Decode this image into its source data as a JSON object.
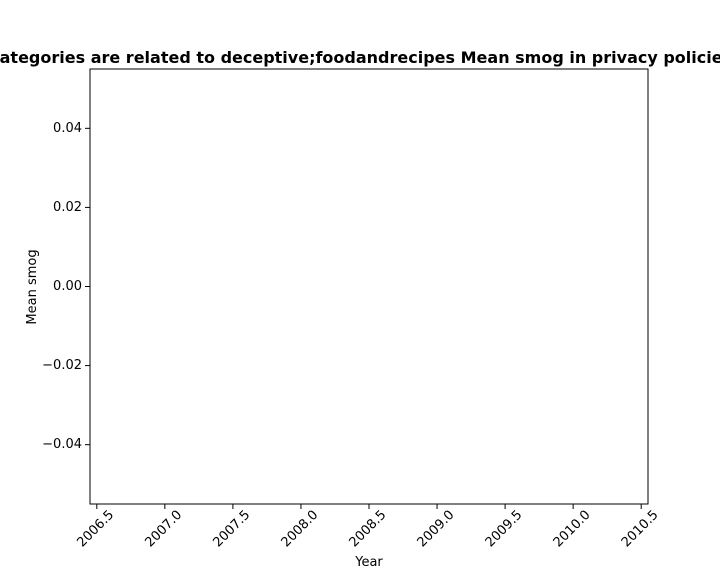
{
  "chart_data": {
    "type": "line",
    "title": "Categories are related to deceptive;foodandrecipes Mean smog in privacy policies",
    "xlabel": "Year",
    "ylabel": "Mean smog",
    "xlim": [
      2006.45,
      2010.55
    ],
    "ylim": [
      -0.055,
      0.055
    ],
    "x_ticks": [
      2006.5,
      2007.0,
      2007.5,
      2008.0,
      2008.5,
      2009.0,
      2009.5,
      2010.0,
      2010.5
    ],
    "x_tick_labels": [
      "2006.5",
      "2007.0",
      "2007.5",
      "2008.0",
      "2008.5",
      "2009.0",
      "2009.5",
      "2010.0",
      "2010.5"
    ],
    "y_ticks": [
      0.04,
      0.02,
      0.0,
      -0.02,
      -0.04
    ],
    "y_tick_labels": [
      "0.04",
      "0.02",
      "0.00",
      "−0.02",
      "−0.04"
    ],
    "series": [],
    "grid": false,
    "legend": "none"
  }
}
